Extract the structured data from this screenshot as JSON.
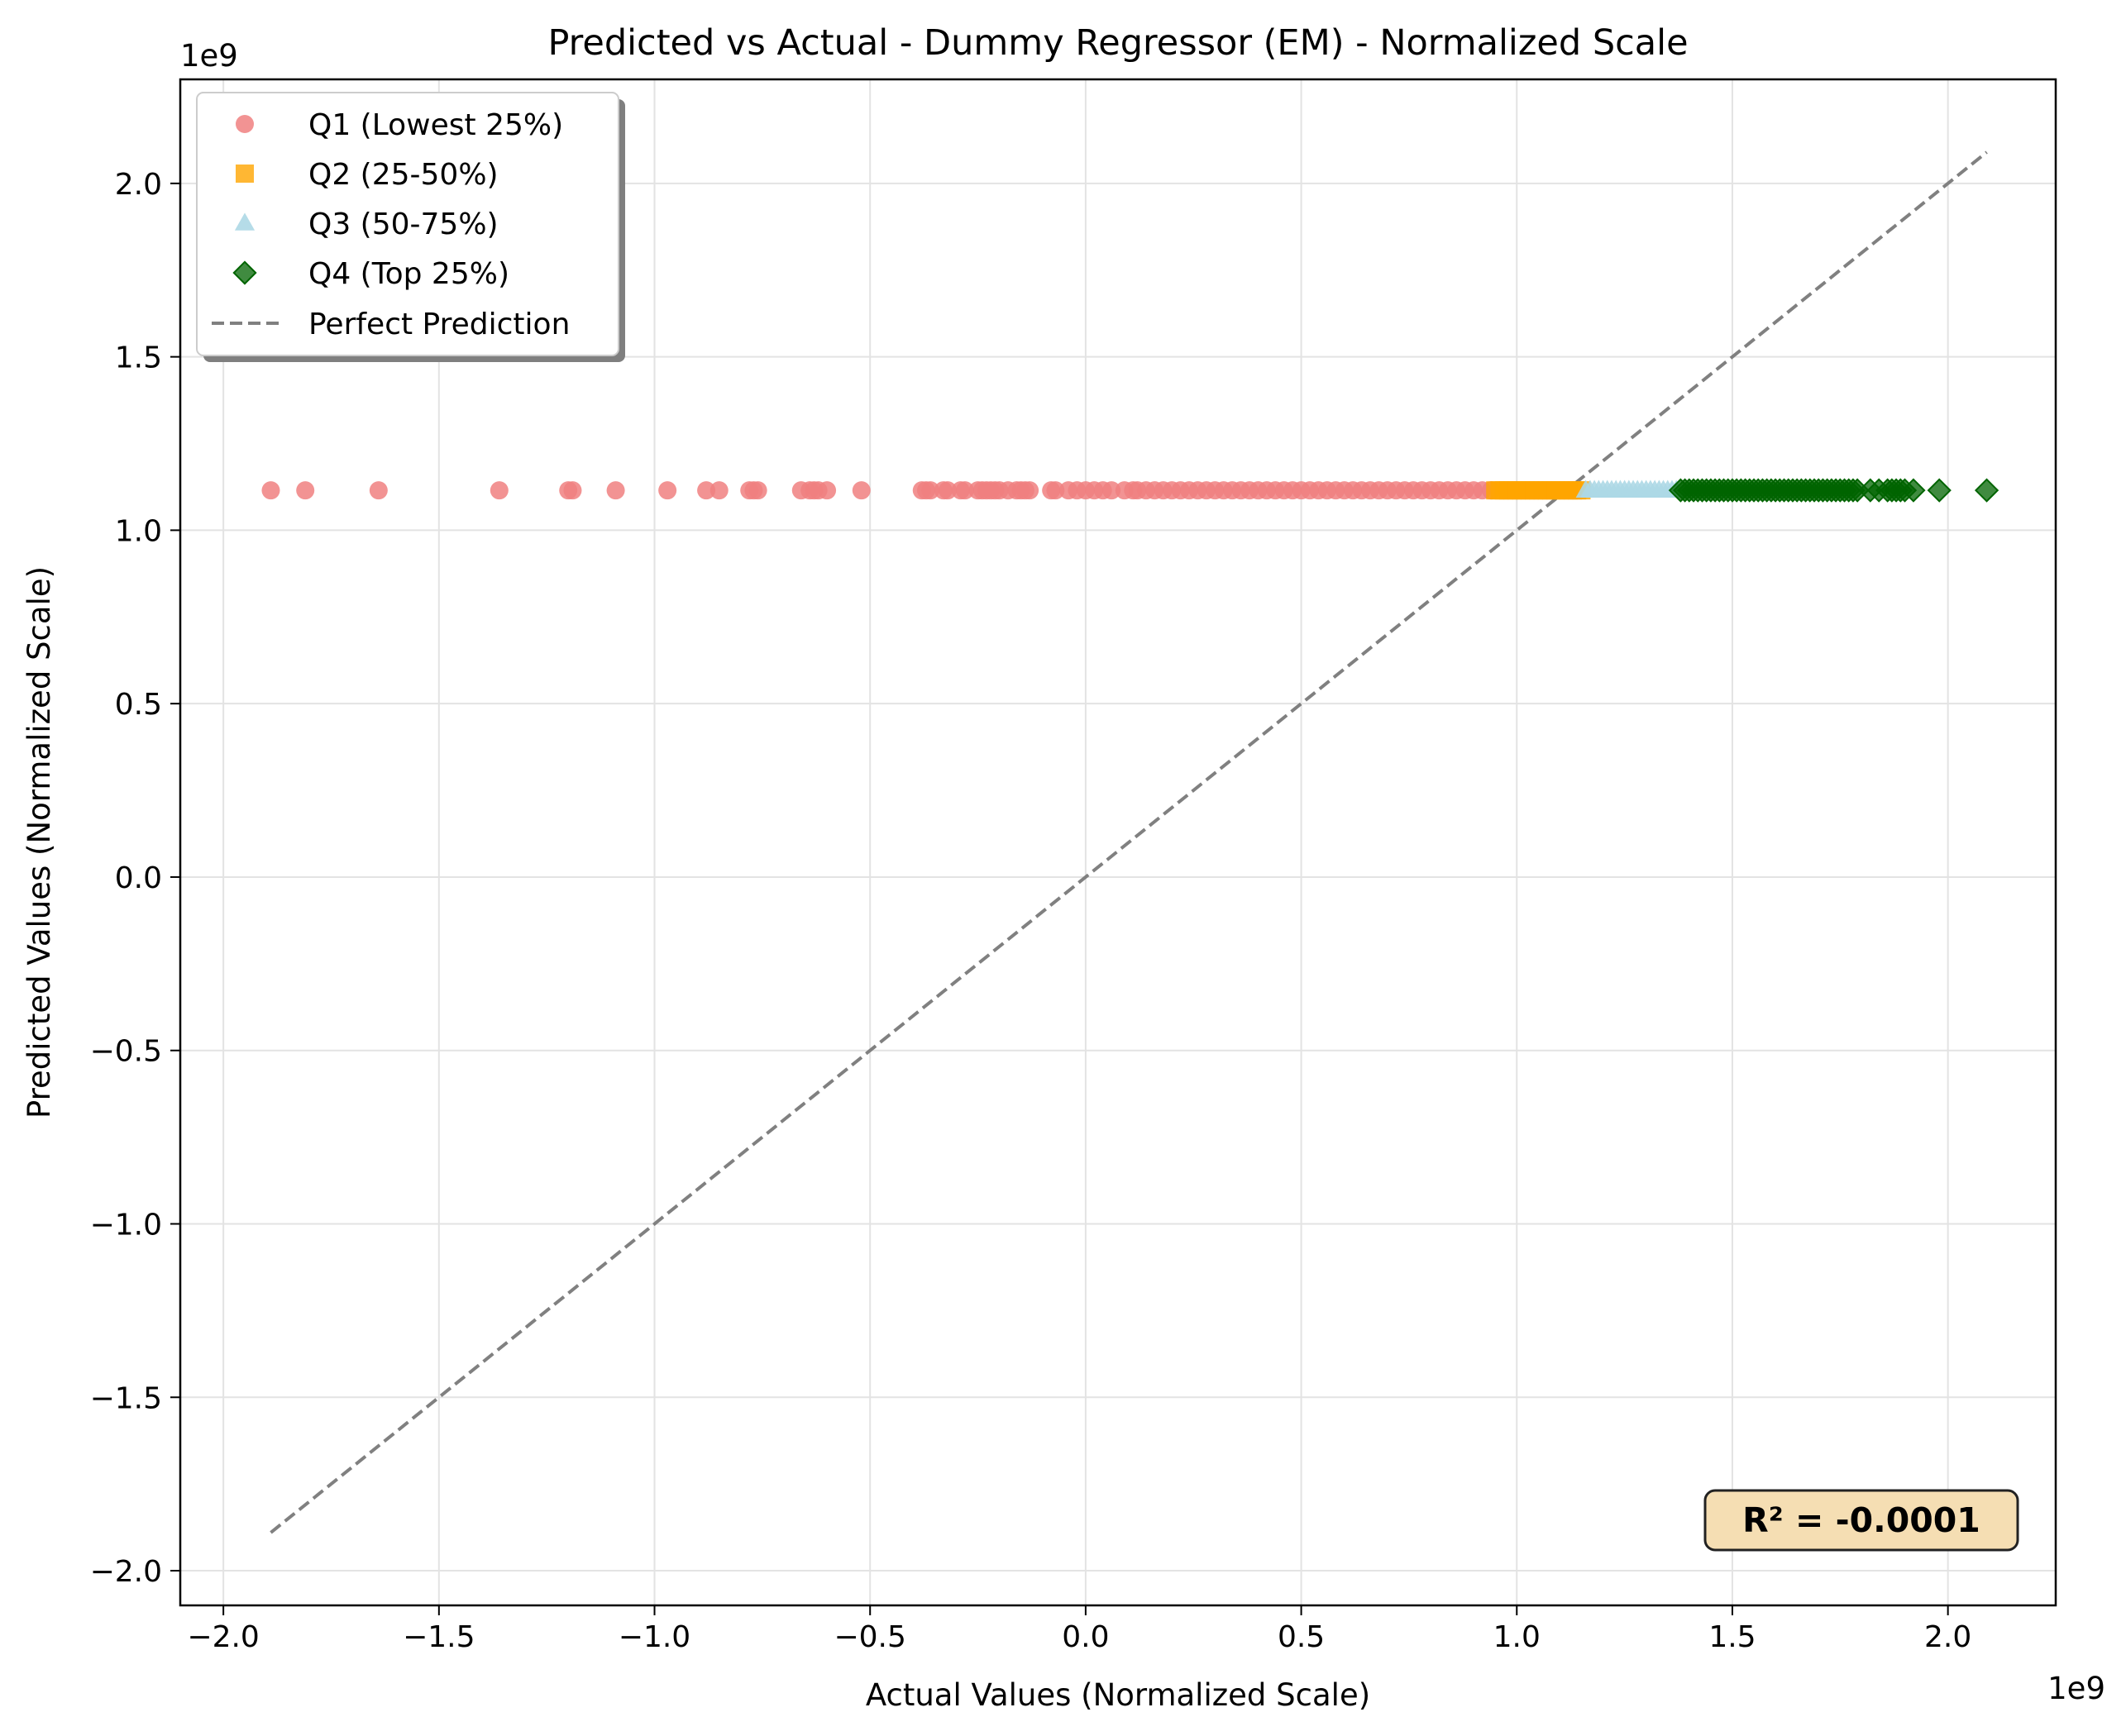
{
  "chart_data": {
    "type": "scatter",
    "title": "Predicted vs Actual - Dummy Regressor (EM) - Normalized Scale",
    "xlabel": "Actual Values (Normalized Scale)",
    "ylabel": "Predicted Values (Normalized Scale)",
    "x_offset_label": "1e9",
    "y_offset_label": "1e9",
    "xlim": [
      -2.1,
      2.25
    ],
    "ylim": [
      -2.1,
      2.3
    ],
    "xticks": [
      -2.0,
      -1.5,
      -1.0,
      -0.5,
      0.0,
      0.5,
      1.0,
      1.5,
      2.0
    ],
    "xtick_labels": [
      "−2.0",
      "−1.5",
      "−1.0",
      "−0.5",
      "0.0",
      "0.5",
      "1.0",
      "1.5",
      "2.0"
    ],
    "yticks": [
      -2.0,
      -1.5,
      -1.0,
      -0.5,
      0.0,
      0.5,
      1.0,
      1.5,
      2.0
    ],
    "ytick_labels": [
      "−2.0",
      "−1.5",
      "−1.0",
      "−0.5",
      "0.0",
      "0.5",
      "1.0",
      "1.5",
      "2.0"
    ],
    "grid": true,
    "legend_position": "top-left",
    "predicted_value": 1.115,
    "series": [
      {
        "name": "Q1 (Lowest 25%)",
        "marker": "circle",
        "color": "#f08080",
        "x": [
          -1.89,
          -1.81,
          -1.64,
          -1.36,
          -1.2,
          -1.19,
          -1.09,
          -0.97,
          -0.88,
          -0.85,
          -0.78,
          -0.77,
          -0.76,
          -0.66,
          -0.64,
          -0.63,
          -0.62,
          -0.6,
          -0.52,
          -0.38,
          -0.37,
          -0.36,
          -0.33,
          -0.32,
          -0.29,
          -0.28,
          -0.25,
          -0.24,
          -0.23,
          -0.22,
          -0.21,
          -0.2,
          -0.18,
          -0.16,
          -0.15,
          -0.14,
          -0.13,
          -0.08,
          -0.07,
          -0.04,
          -0.02,
          0.0,
          0.02,
          0.04,
          0.06,
          0.09,
          0.11,
          0.12,
          0.14,
          0.16,
          0.18,
          0.2,
          0.22,
          0.24,
          0.26,
          0.28,
          0.3,
          0.32,
          0.34,
          0.36,
          0.38,
          0.4,
          0.42,
          0.44,
          0.46,
          0.48,
          0.5,
          0.52,
          0.54,
          0.56,
          0.58,
          0.6,
          0.62,
          0.64,
          0.66,
          0.68,
          0.7,
          0.72,
          0.74,
          0.76,
          0.78,
          0.8,
          0.82,
          0.84,
          0.86,
          0.88,
          0.9,
          0.92,
          0.94
        ]
      },
      {
        "name": "Q2 (25-50%)",
        "marker": "square",
        "color": "#ffa500",
        "x": [
          0.95,
          0.96,
          0.97,
          0.98,
          0.99,
          1.0,
          1.01,
          1.02,
          1.03,
          1.04,
          1.05,
          1.06,
          1.07,
          1.08,
          1.09,
          1.1,
          1.11,
          1.12,
          1.13,
          1.14,
          1.15
        ]
      },
      {
        "name": "Q3 (50-75%)",
        "marker": "triangle",
        "color": "#add8e6",
        "x": [
          1.16,
          1.17,
          1.18,
          1.19,
          1.2,
          1.21,
          1.22,
          1.23,
          1.24,
          1.25,
          1.26,
          1.27,
          1.28,
          1.29,
          1.3,
          1.31,
          1.32,
          1.33,
          1.34,
          1.35,
          1.36,
          1.37
        ]
      },
      {
        "name": "Q4 (Top 25%)",
        "marker": "diamond",
        "color": "#006400",
        "x": [
          1.38,
          1.39,
          1.4,
          1.41,
          1.42,
          1.43,
          1.44,
          1.45,
          1.46,
          1.47,
          1.48,
          1.49,
          1.5,
          1.51,
          1.52,
          1.53,
          1.54,
          1.55,
          1.56,
          1.57,
          1.58,
          1.59,
          1.6,
          1.61,
          1.62,
          1.63,
          1.64,
          1.65,
          1.66,
          1.67,
          1.68,
          1.69,
          1.7,
          1.71,
          1.72,
          1.73,
          1.74,
          1.75,
          1.76,
          1.77,
          1.78,
          1.79,
          1.82,
          1.84,
          1.86,
          1.87,
          1.88,
          1.89,
          1.9,
          1.92,
          1.98,
          2.09
        ]
      }
    ],
    "reference_line": {
      "name": "Perfect Prediction",
      "x": [
        -1.89,
        2.09
      ],
      "y": [
        -1.89,
        2.09
      ],
      "color": "#808080",
      "style": "dashed"
    },
    "annotation": {
      "text": "R² = -0.0001",
      "box_color": "#f5deb3"
    }
  }
}
